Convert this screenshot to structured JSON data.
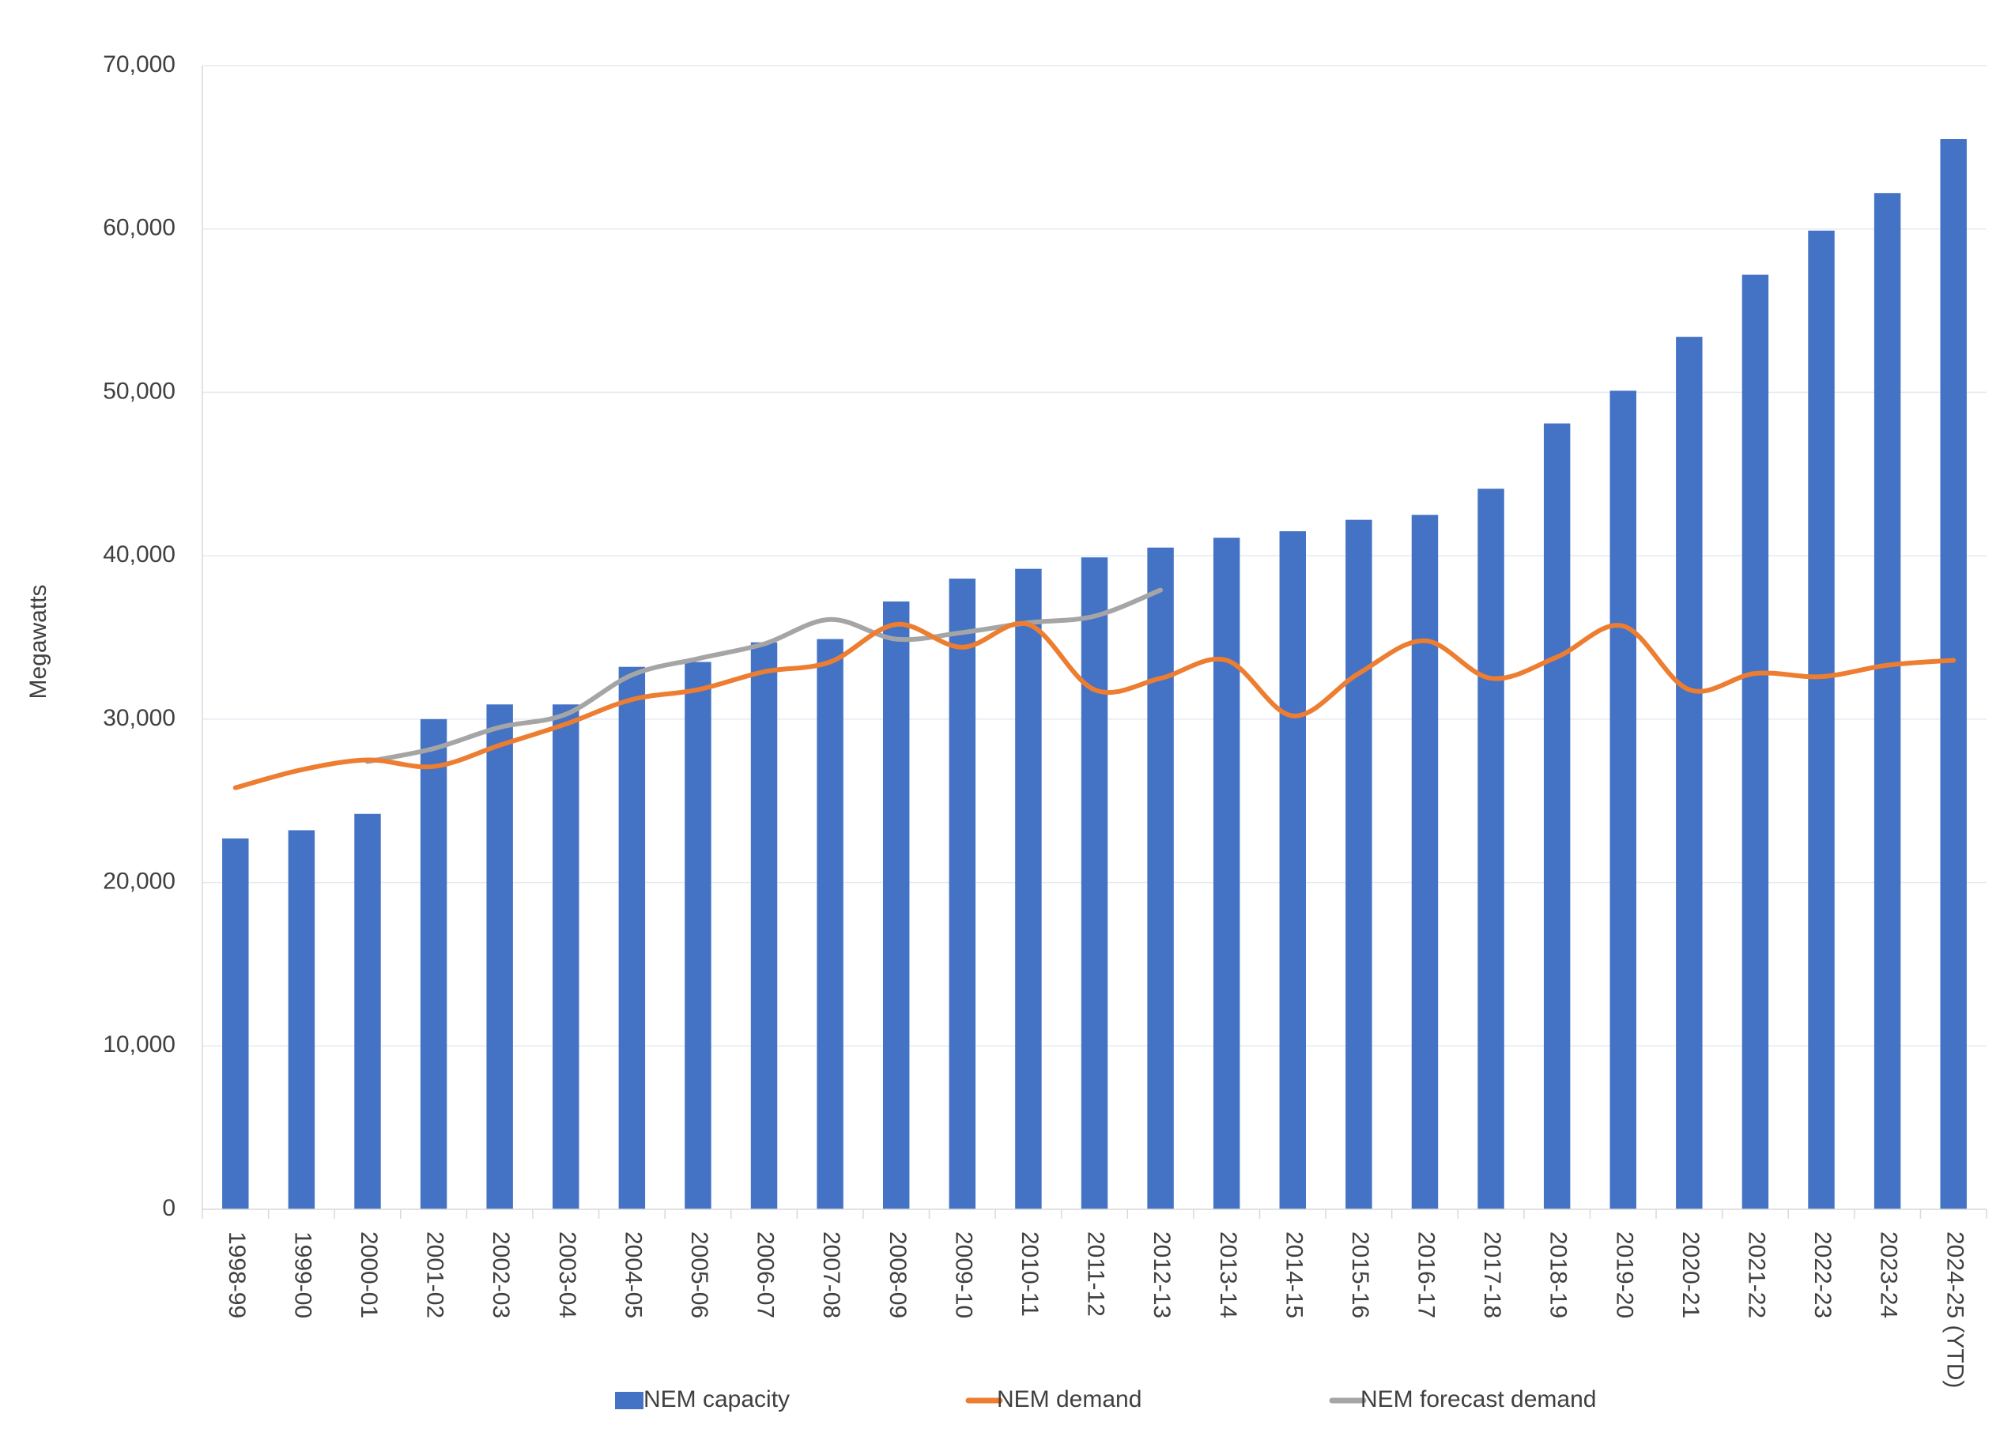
{
  "chart_data": {
    "type": "bar",
    "ylabel": "Megawatts",
    "ylim": [
      0,
      70000
    ],
    "ytick_step": 10000,
    "grid": true,
    "legend_position": "bottom",
    "categories": [
      "1998-99",
      "1999-00",
      "2000-01",
      "2001-02",
      "2002-03",
      "2003-04",
      "2004-05",
      "2005-06",
      "2006-07",
      "2007-08",
      "2008-09",
      "2009-10",
      "2010-11",
      "2011-12",
      "2012-13",
      "2013-14",
      "2014-15",
      "2015-16",
      "2016-17",
      "2017-18",
      "2018-19",
      "2019-20",
      "2020-21",
      "2021-22",
      "2022-23",
      "2023-24",
      "2024-25 (YTD)"
    ],
    "series": [
      {
        "name": "NEM capacity",
        "type": "bar",
        "color": "#4472C4",
        "values": [
          22700,
          23200,
          24200,
          30000,
          30900,
          30900,
          33200,
          33500,
          34700,
          34900,
          37200,
          38600,
          39200,
          39900,
          40500,
          41100,
          41500,
          42200,
          42500,
          44100,
          48100,
          50100,
          53400,
          57200,
          59900,
          62200,
          65500
        ]
      },
      {
        "name": "NEM demand",
        "type": "line",
        "color": "#ED7D31",
        "values": [
          25800,
          26900,
          27500,
          27100,
          28400,
          29700,
          31200,
          31800,
          32900,
          33500,
          35800,
          34400,
          35800,
          31800,
          32500,
          33600,
          30200,
          32800,
          34800,
          32500,
          33800,
          35700,
          31800,
          32800,
          32600,
          33300,
          33600
        ]
      },
      {
        "name": "NEM forecast demand",
        "type": "line",
        "color": "#A5A5A5",
        "values": [
          null,
          null,
          27400,
          28200,
          29500,
          30300,
          32700,
          33700,
          34600,
          36100,
          34900,
          35300,
          35900,
          36300,
          37900,
          null,
          null,
          null,
          null,
          null,
          null,
          null,
          null,
          null,
          null,
          null,
          null
        ]
      }
    ]
  }
}
